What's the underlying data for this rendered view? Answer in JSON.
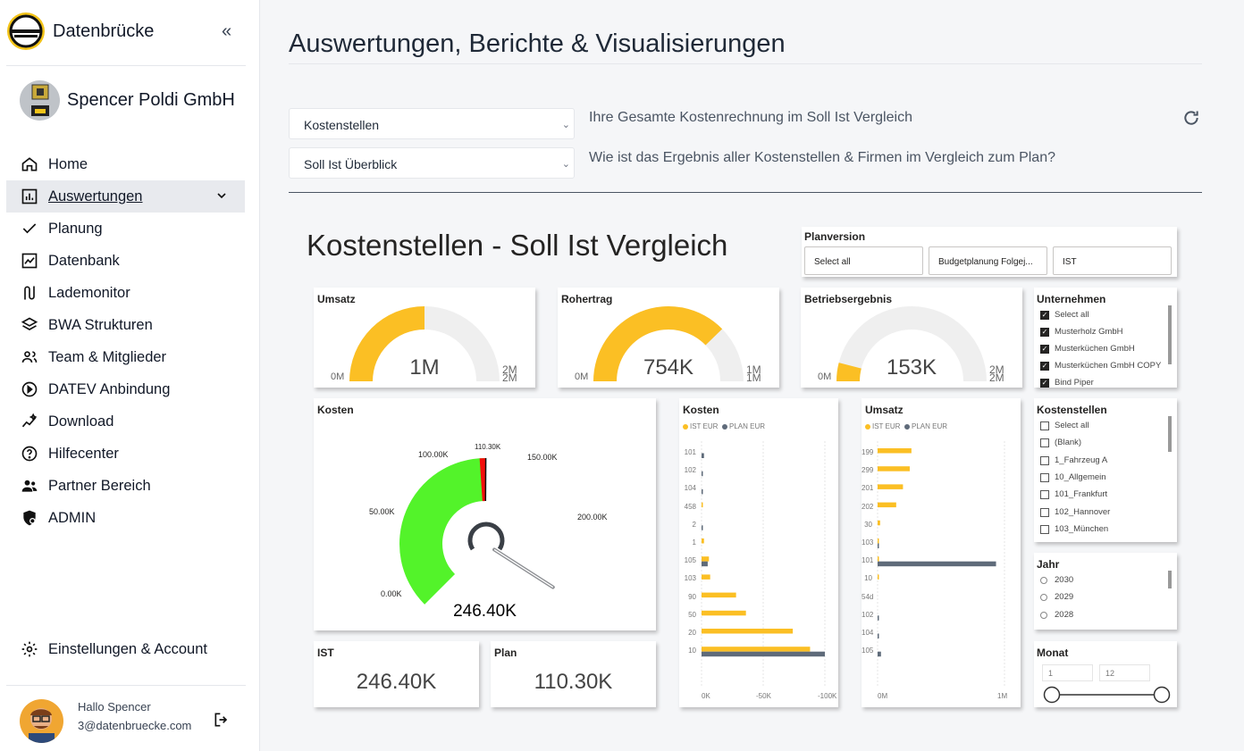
{
  "app": {
    "brand": "Datenbrücke",
    "company": "Spencer Poldi GmbH"
  },
  "nav": {
    "items": [
      {
        "label": "Home",
        "icon": "home-icon"
      },
      {
        "label": "Auswertungen",
        "icon": "chart-bar-icon",
        "active": true
      },
      {
        "label": "Planung",
        "icon": "check-icon"
      },
      {
        "label": "Datenbank",
        "icon": "line-chart-icon"
      },
      {
        "label": "Lademonitor",
        "icon": "route-icon"
      },
      {
        "label": "BWA Strukturen",
        "icon": "layers-icon"
      },
      {
        "label": "Team & Mitglieder",
        "icon": "users-icon"
      },
      {
        "label": "DATEV Anbindung",
        "icon": "play-circle-icon"
      },
      {
        "label": "Download",
        "icon": "sparkle-chart-icon"
      },
      {
        "label": "Hilfecenter",
        "icon": "help-icon"
      },
      {
        "label": "Partner Bereich",
        "icon": "partner-icon"
      },
      {
        "label": "ADMIN",
        "icon": "admin-shield-icon"
      }
    ],
    "settings": "Einstellungen & Account"
  },
  "user": {
    "greeting": "Hallo Spencer",
    "email": "3@datenbruecke.com"
  },
  "page": {
    "title": "Auswertungen, Berichte & Visualisierungen",
    "select1": "Kostenstellen",
    "select2": "Soll Ist Überblick",
    "question1": "Ihre Gesamte Kostenrechnung im Soll Ist Vergleich",
    "question2": "Wie ist das Ergebnis aller Kostenstellen & Firmen im Vergleich zum Plan?"
  },
  "report": {
    "title": "Kostenstellen - Soll Ist Vergleich",
    "planversion": {
      "title": "Planversion",
      "options": [
        "Select all",
        "Budgetplanung Folgej...",
        "IST"
      ]
    },
    "gauges": [
      {
        "title": "Umsatz",
        "value": "1M",
        "min": "0M",
        "max": "2M",
        "fraction": 0.5
      },
      {
        "title": "Rohertrag",
        "value": "754K",
        "min": "0M",
        "max": "1M",
        "fraction": 0.754
      },
      {
        "title": "Betriebsergebnis",
        "value": "153K",
        "min": "0M",
        "max": "2M",
        "fraction": 0.08
      }
    ],
    "unternehmen": {
      "title": "Unternehmen",
      "items": [
        {
          "label": "Select all",
          "checked": true
        },
        {
          "label": "Musterholz GmbH",
          "checked": true
        },
        {
          "label": "Musterküchen GmbH",
          "checked": true
        },
        {
          "label": "Musterküchen GmbH COPY",
          "checked": true
        },
        {
          "label": "Bind Piper",
          "checked": true
        }
      ]
    },
    "kosten": {
      "title": "Kosten",
      "value": "246.40K",
      "labels": [
        "0.00K",
        "50.00K",
        "100.00K",
        "110.30K",
        "150.00K",
        "200.00K"
      ],
      "max": 220,
      "actual": 246.4,
      "target": 110.3
    },
    "ist": {
      "title": "IST",
      "value": "246.40K"
    },
    "plan": {
      "title": "Plan",
      "value": "110.30K"
    },
    "kostenstellen": {
      "title": "Kostenstellen",
      "items": [
        "Select all",
        "(Blank)",
        "1_Fahrzeug A",
        "10_Allgemein",
        "101_Frankfurt",
        "102_Hannover",
        "103_München"
      ]
    },
    "jahr": {
      "title": "Jahr",
      "items": [
        "2030",
        "2029",
        "2028"
      ]
    },
    "monat": {
      "title": "Monat",
      "from": "1",
      "to": "12"
    },
    "colors": {
      "ist": "#fbbf24",
      "plan": "#5f6b7a",
      "green": "#53f32a",
      "red": "#f30f0b",
      "gaugeBg": "#efefef"
    }
  },
  "chart_data": [
    {
      "type": "bar",
      "title": "Kosten",
      "orientation": "horizontal",
      "categories": [
        "101",
        "102",
        "104",
        "458",
        "2",
        "1",
        "105",
        "103",
        "90",
        "50",
        "20",
        "10"
      ],
      "series": [
        {
          "name": "IST EUR",
          "values": [
            0,
            0,
            0,
            -1,
            0,
            -2,
            -6,
            -7,
            -28,
            -36,
            -74,
            -88
          ]
        },
        {
          "name": "PLAN EUR",
          "values": [
            -2,
            -1,
            -1,
            0,
            -1,
            0,
            -5,
            0,
            0,
            0,
            0,
            -100
          ]
        }
      ],
      "xticks": [
        "0K",
        "-50K",
        "-100K"
      ],
      "xlim": [
        0,
        -100
      ]
    },
    {
      "type": "bar",
      "title": "Umsatz",
      "orientation": "horizontal",
      "categories": [
        "199",
        "299",
        "201",
        "202",
        "30",
        "103",
        "101",
        "10",
        "54d",
        "102",
        "104",
        "105"
      ],
      "series": [
        {
          "name": "IST EUR",
          "values": [
            0.4,
            0.38,
            0.3,
            0.22,
            0.03,
            0.01,
            0.01,
            0.01,
            0.0,
            0.0,
            0.0,
            0.0
          ]
        },
        {
          "name": "PLAN EUR",
          "values": [
            0,
            0,
            0,
            0,
            0,
            0.01,
            1.4,
            0,
            0,
            0.01,
            0.01,
            0.04
          ]
        }
      ],
      "xticks": [
        "0M",
        "1M"
      ],
      "xlim": [
        0,
        1.5
      ]
    }
  ]
}
